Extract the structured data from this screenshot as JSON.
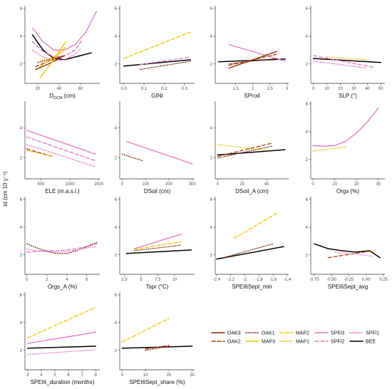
{
  "figure": {
    "ylabel": "id (cm 10 y⁻¹)",
    "colors": {
      "OAK3": "#8b2500",
      "OAK2": "#b03a10",
      "OAK1": "#7a2a12",
      "MAP3": "#f2c200",
      "MAP2": "#f2c200",
      "MAP1": "#f2c200",
      "SPFI3": "#e377c2",
      "SPFI2": "#e377c2",
      "SPFI1": "#e377c2",
      "BEE": "#000000"
    },
    "legend": [
      {
        "name": "OAK3",
        "style": "solid"
      },
      {
        "name": "OAK1",
        "style": "dotted"
      },
      {
        "name": "MAP2",
        "style": "dashed"
      },
      {
        "name": "SPFI3",
        "style": "solid"
      },
      {
        "name": "SPFI1",
        "style": "dotted"
      },
      {
        "name": "OAK2",
        "style": "dashed"
      },
      {
        "name": "MAP3",
        "style": "solid"
      },
      {
        "name": "MAP1",
        "style": "dotted"
      },
      {
        "name": "SPFI2",
        "style": "dashed"
      },
      {
        "name": "BEE",
        "style": "solid"
      }
    ]
  },
  "chart_data": [
    {
      "type": "line",
      "xlabel": "D_DCM (cm)",
      "xlim": [
        8,
        78
      ],
      "ylim": [
        0.6,
        6.2
      ],
      "xticks": [
        20,
        40,
        60
      ],
      "yticks": [
        2,
        4,
        6
      ],
      "series": [
        {
          "name": "BEE",
          "x": [
            15,
            25,
            35,
            45,
            55,
            65,
            70
          ],
          "y": [
            4.1,
            3.0,
            2.4,
            2.3,
            2.5,
            2.7,
            2.8
          ]
        },
        {
          "name": "SPFI3",
          "x": [
            15,
            25,
            35,
            45,
            55,
            65,
            75
          ],
          "y": [
            4.6,
            3.6,
            3.0,
            3.0,
            3.4,
            4.3,
            5.8
          ]
        },
        {
          "name": "SPFI2",
          "x": [
            15,
            25,
            35,
            45,
            55,
            62
          ],
          "y": [
            3.6,
            2.9,
            2.5,
            2.6,
            3.0,
            3.8
          ]
        },
        {
          "name": "SPFI1",
          "x": [
            15,
            25,
            35,
            45,
            55,
            60
          ],
          "y": [
            3.0,
            2.5,
            2.2,
            2.3,
            2.7,
            3.1
          ]
        },
        {
          "name": "OAK3",
          "x": [
            18,
            30,
            45
          ],
          "y": [
            1.6,
            2.0,
            2.6
          ]
        },
        {
          "name": "OAK2",
          "x": [
            18,
            30,
            45
          ],
          "y": [
            1.8,
            2.2,
            2.6
          ]
        },
        {
          "name": "OAK1",
          "x": [
            20,
            30,
            45
          ],
          "y": [
            2.1,
            2.3,
            2.6
          ]
        },
        {
          "name": "MAP3",
          "x": [
            22,
            34,
            46
          ],
          "y": [
            1.0,
            2.2,
            3.6
          ]
        },
        {
          "name": "MAP2",
          "x": [
            22,
            34,
            46
          ],
          "y": [
            1.8,
            2.4,
            3.2
          ]
        },
        {
          "name": "MAP1",
          "x": [
            22,
            34,
            46
          ],
          "y": [
            2.2,
            2.5,
            2.9
          ]
        }
      ]
    },
    {
      "type": "line",
      "xlabel": "GINI",
      "xlim": [
        -0.02,
        0.35
      ],
      "ylim": [
        0.6,
        6.2
      ],
      "xticks": [
        0,
        0.1,
        0.2,
        0.3
      ],
      "xticklabels": [
        "0.0",
        "0.1",
        "0.2",
        "0.3"
      ],
      "yticks": [
        2,
        4,
        6
      ],
      "series": [
        {
          "name": "BEE",
          "x": [
            0,
            0.33
          ],
          "y": [
            1.85,
            2.3
          ]
        },
        {
          "name": "MAP2",
          "x": [
            0,
            0.33
          ],
          "y": [
            2.4,
            4.3
          ]
        },
        {
          "name": "SPFI2",
          "x": [
            0.08,
            0.33
          ],
          "y": [
            1.95,
            2.5
          ]
        },
        {
          "name": "OAK1",
          "x": [
            0.08,
            0.33
          ],
          "y": [
            1.6,
            2.2
          ]
        }
      ]
    },
    {
      "type": "line",
      "xlabel": "SProd",
      "xlim": [
        0.9,
        3.05
      ],
      "ylim": [
        0.6,
        6.2
      ],
      "xticks": [
        1.5,
        2.0,
        2.5,
        3.0
      ],
      "yticks": [
        2,
        4,
        6
      ],
      "series": [
        {
          "name": "BEE",
          "x": [
            1.0,
            2.95
          ],
          "y": [
            2.15,
            2.35
          ]
        },
        {
          "name": "SPFI3",
          "x": [
            1.3,
            2.95
          ],
          "y": [
            3.4,
            2.2
          ]
        },
        {
          "name": "OAK3",
          "x": [
            1.3,
            2.7
          ],
          "y": [
            1.7,
            2.9
          ]
        },
        {
          "name": "OAK2",
          "x": [
            1.3,
            2.7
          ],
          "y": [
            1.9,
            2.7
          ]
        },
        {
          "name": "OAK1",
          "x": [
            1.3,
            2.7
          ],
          "y": [
            2.0,
            2.4
          ]
        }
      ]
    },
    {
      "type": "line",
      "xlabel": "SLP (°)",
      "xlim": [
        -2,
        53
      ],
      "ylim": [
        0.6,
        6.2
      ],
      "xticks": [
        0,
        10,
        20,
        30,
        40,
        50
      ],
      "yticks": [
        2,
        4,
        6
      ],
      "series": [
        {
          "name": "BEE",
          "x": [
            0,
            50
          ],
          "y": [
            2.4,
            2.1
          ]
        },
        {
          "name": "SPFI2",
          "x": [
            0,
            45
          ],
          "y": [
            2.6,
            1.75
          ]
        },
        {
          "name": "SPFI1",
          "x": [
            0,
            40
          ],
          "y": [
            2.2,
            1.7
          ]
        },
        {
          "name": "MAP1",
          "x": [
            10,
            40
          ],
          "y": [
            2.5,
            2.3
          ]
        }
      ]
    },
    {
      "type": "line",
      "xlabel": "ELE (m.a.s.l.)",
      "xlim": [
        220,
        1520
      ],
      "ylim": [
        0.6,
        5.8
      ],
      "xticks": [
        500,
        1000,
        1500
      ],
      "yticks": [
        2,
        4
      ],
      "series": [
        {
          "name": "SPFI3",
          "x": [
            250,
            1450
          ],
          "y": [
            3.85,
            2.25
          ]
        },
        {
          "name": "SPFI2",
          "x": [
            250,
            1450
          ],
          "y": [
            3.4,
            1.8
          ]
        },
        {
          "name": "SPFI1",
          "x": [
            250,
            1450
          ],
          "y": [
            2.9,
            1.4
          ]
        },
        {
          "name": "OAK2",
          "x": [
            250,
            700
          ],
          "y": [
            2.6,
            2.1
          ]
        },
        {
          "name": "MAP1",
          "x": [
            250,
            700
          ],
          "y": [
            2.5,
            2.1
          ]
        }
      ]
    },
    {
      "type": "line",
      "xlabel": "DSoil (cm)",
      "xlim": [
        -10,
        310
      ],
      "ylim": [
        0.6,
        5.8
      ],
      "xticks": [
        0,
        100,
        200,
        300
      ],
      "yticks": [
        2,
        4
      ],
      "series": [
        {
          "name": "SPFI3",
          "x": [
            20,
            300
          ],
          "y": [
            3.1,
            1.6
          ]
        },
        {
          "name": "OAK1",
          "x": [
            0,
            90
          ],
          "y": [
            2.25,
            1.8
          ]
        }
      ]
    },
    {
      "type": "line",
      "xlabel": "DSoil_A (cm)",
      "xlim": [
        -2,
        58
      ],
      "ylim": [
        0.6,
        5.8
      ],
      "xticks": [
        0,
        20,
        40
      ],
      "yticks": [
        2,
        4
      ],
      "series": [
        {
          "name": "BEE",
          "x": [
            0,
            55
          ],
          "y": [
            2.2,
            2.55
          ]
        },
        {
          "name": "MAP1",
          "x": [
            0,
            40
          ],
          "y": [
            2.9,
            2.5
          ]
        },
        {
          "name": "OAK2",
          "x": [
            0,
            45
          ],
          "y": [
            2.1,
            3.0
          ]
        },
        {
          "name": "OAK1",
          "x": [
            0,
            45
          ],
          "y": [
            2.0,
            2.8
          ]
        }
      ]
    },
    {
      "type": "line",
      "xlabel": "Orgs (%)",
      "xlim": [
        -1,
        33
      ],
      "ylim": [
        0.6,
        6.2
      ],
      "xticks": [
        0,
        10,
        20,
        30
      ],
      "yticks": [
        2,
        4,
        6
      ],
      "series": [
        {
          "name": "SPFI3",
          "x": [
            0,
            5,
            10,
            15,
            20,
            25,
            30
          ],
          "y": [
            3.0,
            2.95,
            3.0,
            3.3,
            3.9,
            4.7,
            5.7
          ]
        },
        {
          "name": "MAP1",
          "x": [
            0,
            15
          ],
          "y": [
            2.6,
            2.9
          ]
        }
      ]
    },
    {
      "type": "line",
      "xlabel": "Orgs_A (%)",
      "xlim": [
        -0.2,
        7.3
      ],
      "ylim": [
        0.6,
        6.2
      ],
      "xticks": [
        0,
        2,
        4,
        6
      ],
      "yticks": [
        2,
        4,
        6
      ],
      "series": [
        {
          "name": "SPFI2",
          "x": [
            0,
            1,
            2,
            3,
            4,
            5,
            6,
            7
          ],
          "y": [
            2.2,
            2.25,
            2.3,
            2.3,
            2.35,
            2.45,
            2.6,
            2.8
          ]
        },
        {
          "name": "OAK1",
          "x": [
            0,
            1,
            2,
            3,
            4,
            5,
            6,
            7
          ],
          "y": [
            2.8,
            2.5,
            2.25,
            2.1,
            2.1,
            2.3,
            2.6,
            2.9
          ]
        },
        {
          "name": "SPFI1",
          "x": [
            0,
            1,
            2,
            3,
            4,
            5,
            6,
            7
          ],
          "y": [
            2.4,
            2.3,
            2.25,
            2.2,
            2.25,
            2.35,
            2.5,
            2.6
          ]
        }
      ]
    },
    {
      "type": "line",
      "xlabel": "Tspr (°C)",
      "xlim": [
        1.8,
        13
      ],
      "ylim": [
        0.6,
        6.2
      ],
      "xticks": [
        2.5,
        5.0,
        7.5,
        10.0
      ],
      "yticks": [
        2,
        4,
        6
      ],
      "series": [
        {
          "name": "BEE",
          "x": [
            2.8,
            12.5
          ],
          "y": [
            2.1,
            2.35
          ]
        },
        {
          "name": "SPFI3",
          "x": [
            4,
            11
          ],
          "y": [
            2.45,
            3.5
          ]
        },
        {
          "name": "MAP2",
          "x": [
            4,
            11
          ],
          "y": [
            2.4,
            2.95
          ]
        },
        {
          "name": "OAK1",
          "x": [
            4,
            11
          ],
          "y": [
            2.3,
            2.7
          ]
        }
      ]
    },
    {
      "type": "line",
      "xlabel": "SPEI6Sept_min",
      "xlim": [
        -2.42,
        -1.38
      ],
      "ylim": [
        0.6,
        6.2
      ],
      "xticks": [
        -2.4,
        -2.2,
        -2.0,
        -1.8,
        -1.6,
        -1.4
      ],
      "yticks": [
        2,
        4,
        6
      ],
      "series": [
        {
          "name": "BEE",
          "x": [
            -2.4,
            -1.45
          ],
          "y": [
            1.7,
            2.6
          ]
        },
        {
          "name": "MAP2",
          "x": [
            -2.15,
            -1.55
          ],
          "y": [
            3.2,
            5.0
          ]
        },
        {
          "name": "OAK1",
          "x": [
            -2.3,
            -1.6
          ],
          "y": [
            1.8,
            2.8
          ]
        }
      ]
    },
    {
      "type": "line",
      "xlabel": "SPEI6Sept_avg",
      "xlim": [
        -0.8,
        0.27
      ],
      "ylim": [
        0.6,
        6.2
      ],
      "xticks": [
        -0.75,
        -0.5,
        -0.25,
        0,
        0.25
      ],
      "xticklabels": [
        "-0.75",
        "-0.50",
        "-0.25",
        "0.00",
        "0.25"
      ],
      "yticks": [
        2,
        4,
        6
      ],
      "series": [
        {
          "name": "BEE",
          "x": [
            -0.75,
            -0.55,
            -0.35,
            -0.15,
            0.05,
            0.2
          ],
          "y": [
            2.8,
            2.45,
            2.3,
            2.2,
            2.3,
            1.8
          ]
        },
        {
          "name": "OAK2",
          "x": [
            -0.55,
            0.1
          ],
          "y": [
            1.8,
            2.3
          ]
        },
        {
          "name": "SPFI1",
          "x": [
            -0.45,
            0.1
          ],
          "y": [
            2.2,
            1.9
          ]
        }
      ]
    },
    {
      "type": "line",
      "xlabel": "SPEI6_duration (months)",
      "xlim": [
        2.8,
        8.3
      ],
      "ylim": [
        0.6,
        6.2
      ],
      "xticks": [
        3,
        4,
        5,
        6,
        7,
        8
      ],
      "yticks": [
        2,
        4,
        6
      ],
      "series": [
        {
          "name": "BEE",
          "x": [
            3,
            8
          ],
          "y": [
            2.15,
            2.3
          ]
        },
        {
          "name": "MAP2",
          "x": [
            3,
            8
          ],
          "y": [
            2.9,
            5.1
          ]
        },
        {
          "name": "SPFI3",
          "x": [
            3,
            8
          ],
          "y": [
            2.5,
            3.3
          ]
        },
        {
          "name": "SPFI1",
          "x": [
            3,
            8
          ],
          "y": [
            1.7,
            2.05
          ]
        }
      ]
    },
    {
      "type": "line",
      "xlabel": "SPEI6Sept_share (%)",
      "xlim": [
        -1,
        31
      ],
      "ylim": [
        0.6,
        6.2
      ],
      "xticks": [
        0,
        10,
        20,
        30
      ],
      "yticks": [
        2,
        4,
        6
      ],
      "series": [
        {
          "name": "BEE",
          "x": [
            0,
            30
          ],
          "y": [
            2.15,
            2.3
          ]
        },
        {
          "name": "MAP2",
          "x": [
            0,
            20
          ],
          "y": [
            2.6,
            4.3
          ]
        },
        {
          "name": "OAK1",
          "x": [
            10,
            20
          ],
          "y": [
            2.0,
            2.3
          ]
        },
        {
          "name": "OAK2",
          "x": [
            10,
            20
          ],
          "y": [
            2.1,
            2.35
          ]
        }
      ]
    }
  ]
}
